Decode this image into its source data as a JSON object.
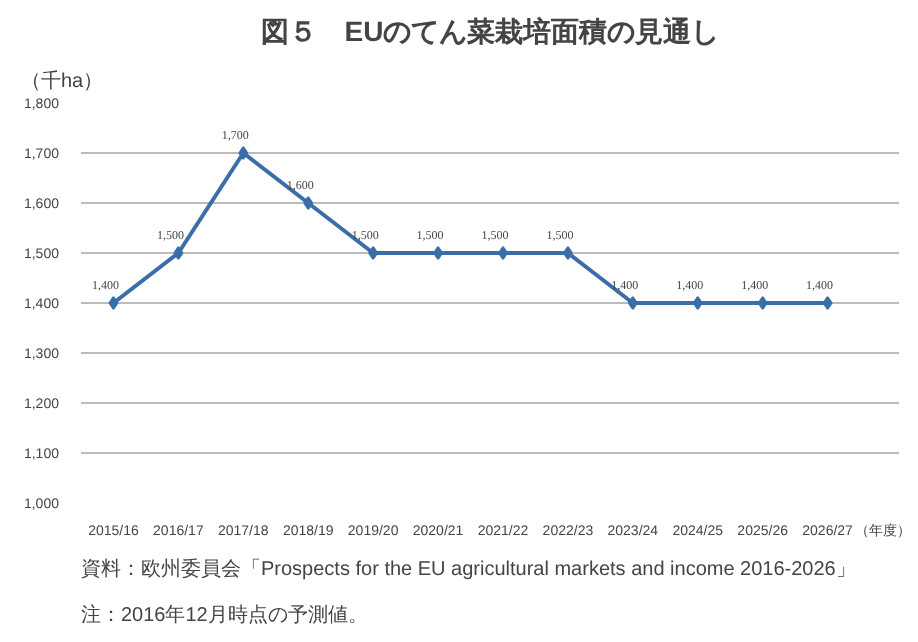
{
  "chart_data": {
    "type": "line",
    "title": "図５　EUのてん菜栽培面積の見通し",
    "ylabel": "（千ha）",
    "xlabel": "（年度）",
    "categories": [
      "2015/16",
      "2016/17",
      "2017/18",
      "2018/19",
      "2019/20",
      "2020/21",
      "2021/22",
      "2022/23",
      "2023/24",
      "2024/25",
      "2025/26",
      "2026/27"
    ],
    "series": [
      {
        "color": "#3a6ea8",
        "values": [
          1400,
          1500,
          1700,
          1600,
          1500,
          1500,
          1500,
          1500,
          1400,
          1400,
          1400,
          1400
        ],
        "value_labels": [
          "1,400",
          "1,500",
          "1,700",
          "1,600",
          "1,500",
          "1,500",
          "1,500",
          "1,500",
          "1,400",
          "1,400",
          "1,400",
          "1,400"
        ]
      }
    ],
    "ylim": [
      1000,
      1800
    ],
    "yticks": [
      {
        "value": 1000,
        "label": "1,000"
      },
      {
        "value": 1100,
        "label": "1,100"
      },
      {
        "value": 1200,
        "label": "1,200"
      },
      {
        "value": 1300,
        "label": "1,300"
      },
      {
        "value": 1400,
        "label": "1,400"
      },
      {
        "value": 1500,
        "label": "1,500"
      },
      {
        "value": 1600,
        "label": "1,600"
      },
      {
        "value": 1700,
        "label": "1,700"
      },
      {
        "value": 1800,
        "label": "1,800"
      }
    ],
    "grid": "y",
    "marker": "diamond",
    "line_style": "solid",
    "annotations": [
      "資料：欧州委員会「Prospects for the EU agricultural markets and income 2016-2026」",
      "注：2016年12月時点の予測値。"
    ]
  }
}
